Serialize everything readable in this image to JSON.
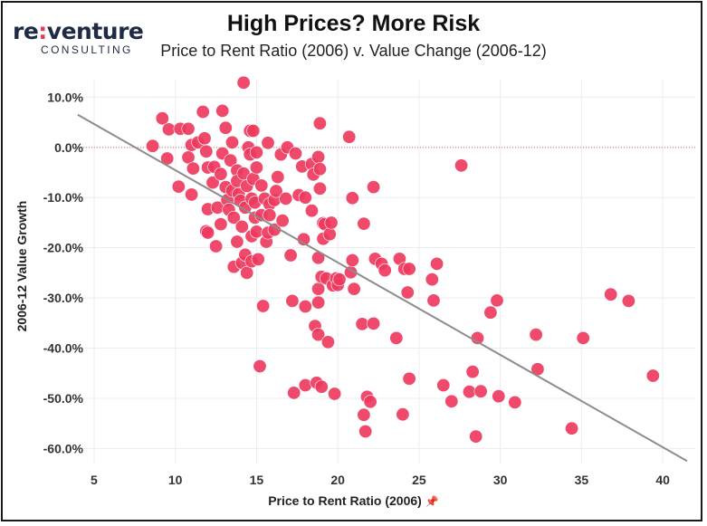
{
  "logo": {
    "main_left": "re",
    "main_colon": ":",
    "main_right": "venture",
    "sub": "CONSULTING"
  },
  "colors": {
    "point": "#ee3a5e",
    "trend": "#8c8c8c",
    "zero_line": "#d46a6a",
    "grid": "#ececec",
    "logo_accent": "#e8395a",
    "logo_text": "#1f2a44"
  },
  "chart_data": {
    "type": "scatter",
    "title": "High Prices? More Risk",
    "subtitle": "Price to Rent Ratio (2006) v. Value Change (2006-12)",
    "xlabel": "Price to Rent Ratio (2006)",
    "ylabel": "2006-12 Value Growth",
    "xlim": [
      4.0,
      42.0
    ],
    "ylim": [
      -63.0,
      13.5
    ],
    "xticks": [
      5,
      10,
      15,
      20,
      25,
      30,
      35,
      40
    ],
    "xtick_labels": [
      "5",
      "10",
      "15",
      "20",
      "25",
      "30",
      "35",
      "40"
    ],
    "yticks": [
      10,
      0,
      -10,
      -20,
      -30,
      -40,
      -50,
      -60
    ],
    "ytick_labels": [
      "10.0%",
      "0.0%",
      "-10.0%",
      "-20.0%",
      "-30.0%",
      "-40.0%",
      "-50.0%",
      "-60.0%"
    ],
    "grid": true,
    "zero_line": true,
    "trendline": {
      "x": [
        4.0,
        41.5
      ],
      "y": [
        6.5,
        -62.5
      ]
    },
    "points": [
      [
        8.6,
        0.3
      ],
      [
        9.2,
        5.8
      ],
      [
        9.6,
        3.6
      ],
      [
        9.5,
        -2.2
      ],
      [
        10.3,
        3.7
      ],
      [
        10.2,
        -7.8
      ],
      [
        10.8,
        3.7
      ],
      [
        10.8,
        -2.0
      ],
      [
        11.0,
        0.5
      ],
      [
        11.1,
        -4.2
      ],
      [
        11.0,
        -9.4
      ],
      [
        11.4,
        1.0
      ],
      [
        11.7,
        7.1
      ],
      [
        11.8,
        1.8
      ],
      [
        11.9,
        -0.8
      ],
      [
        12.0,
        -4.0
      ],
      [
        12.0,
        -12.3
      ],
      [
        11.9,
        -16.7
      ],
      [
        12.0,
        -17.0
      ],
      [
        12.4,
        -3.9
      ],
      [
        12.3,
        -7.0
      ],
      [
        12.6,
        -12.0
      ],
      [
        12.5,
        -19.7
      ],
      [
        12.9,
        7.3
      ],
      [
        12.9,
        -1.2
      ],
      [
        12.8,
        -5.3
      ],
      [
        12.8,
        -15.3
      ],
      [
        13.1,
        3.9
      ],
      [
        13.1,
        -7.9
      ],
      [
        13.2,
        -10.5
      ],
      [
        13.3,
        -12.4
      ],
      [
        13.5,
        1.0
      ],
      [
        13.4,
        -2.6
      ],
      [
        13.5,
        -8.6
      ],
      [
        13.6,
        -14.0
      ],
      [
        13.6,
        -23.8
      ],
      [
        13.8,
        -4.6
      ],
      [
        13.8,
        -6.7
      ],
      [
        13.9,
        -9.3
      ],
      [
        13.8,
        -18.8
      ],
      [
        14.0,
        -10.6
      ],
      [
        14.1,
        -15.8
      ],
      [
        14.1,
        -23.0
      ],
      [
        14.2,
        12.9
      ],
      [
        14.2,
        -5.2
      ],
      [
        14.3,
        -12.0
      ],
      [
        14.3,
        -21.4
      ],
      [
        14.4,
        -25.0
      ],
      [
        14.5,
        0.0
      ],
      [
        14.4,
        -7.7
      ],
      [
        14.6,
        3.3
      ],
      [
        14.6,
        -1.4
      ],
      [
        14.7,
        -10.2
      ],
      [
        14.7,
        -17.7
      ],
      [
        14.7,
        -22.7
      ],
      [
        14.8,
        3.3
      ],
      [
        14.8,
        -6.3
      ],
      [
        14.9,
        -11.0
      ],
      [
        14.9,
        -14.0
      ],
      [
        15.0,
        -1.0
      ],
      [
        15.0,
        -4.0
      ],
      [
        15.0,
        -16.8
      ],
      [
        15.1,
        -22.3
      ],
      [
        15.2,
        -43.6
      ],
      [
        15.3,
        -7.6
      ],
      [
        15.3,
        -13.5
      ],
      [
        15.4,
        -31.6
      ],
      [
        15.5,
        -10.2
      ],
      [
        15.6,
        -18.8
      ],
      [
        15.7,
        0.9
      ],
      [
        15.7,
        -17.0
      ],
      [
        15.8,
        -11.3
      ],
      [
        15.8,
        -13.5
      ],
      [
        16.1,
        -10.5
      ],
      [
        16.1,
        -16.4
      ],
      [
        16.2,
        -8.7
      ],
      [
        16.3,
        -5.9
      ],
      [
        16.5,
        -1.4
      ],
      [
        16.6,
        -14.6
      ],
      [
        16.8,
        -10.2
      ],
      [
        16.9,
        0.0
      ],
      [
        17.1,
        -21.5
      ],
      [
        17.2,
        -30.6
      ],
      [
        17.3,
        -48.9
      ],
      [
        17.4,
        -1.2
      ],
      [
        17.6,
        -9.5
      ],
      [
        17.8,
        -3.8
      ],
      [
        18.0,
        -10.0
      ],
      [
        17.9,
        -18.3
      ],
      [
        18.0,
        -31.7
      ],
      [
        18.0,
        -47.4
      ],
      [
        18.4,
        -3.3
      ],
      [
        18.4,
        -12.6
      ],
      [
        18.5,
        -5.4
      ],
      [
        18.6,
        -35.6
      ],
      [
        18.7,
        -46.9
      ],
      [
        18.8,
        -1.9
      ],
      [
        18.9,
        -4.3
      ],
      [
        18.9,
        -8.2
      ],
      [
        18.8,
        -22.0
      ],
      [
        18.8,
        -28.2
      ],
      [
        18.8,
        -30.9
      ],
      [
        18.8,
        -37.3
      ],
      [
        18.9,
        4.8
      ],
      [
        19.0,
        -25.8
      ],
      [
        19.0,
        -47.7
      ],
      [
        19.1,
        -18.2
      ],
      [
        19.1,
        -15.1
      ],
      [
        19.2,
        -15.3
      ],
      [
        19.3,
        -26.1
      ],
      [
        19.4,
        -38.8
      ],
      [
        19.5,
        -17.3
      ],
      [
        19.6,
        -15.0
      ],
      [
        19.7,
        -27.5
      ],
      [
        19.8,
        -49.1
      ],
      [
        19.9,
        -26.1
      ],
      [
        20.0,
        -27.4
      ],
      [
        20.1,
        -26.3
      ],
      [
        20.7,
        2.1
      ],
      [
        20.8,
        -24.9
      ],
      [
        20.9,
        -10.1
      ],
      [
        20.9,
        -22.5
      ],
      [
        21.0,
        -28.2
      ],
      [
        21.5,
        -35.2
      ],
      [
        21.6,
        -15.2
      ],
      [
        21.6,
        -53.3
      ],
      [
        21.7,
        -56.6
      ],
      [
        21.8,
        -49.7
      ],
      [
        22.0,
        -50.7
      ],
      [
        22.2,
        -7.9
      ],
      [
        22.2,
        -35.1
      ],
      [
        22.3,
        -22.2
      ],
      [
        22.7,
        -23.2
      ],
      [
        22.9,
        -24.5
      ],
      [
        23.6,
        -38.0
      ],
      [
        23.8,
        -22.2
      ],
      [
        24.0,
        -53.2
      ],
      [
        24.1,
        -24.2
      ],
      [
        24.3,
        -28.9
      ],
      [
        24.4,
        -24.2
      ],
      [
        24.4,
        -46.1
      ],
      [
        25.8,
        -26.3
      ],
      [
        25.9,
        -30.5
      ],
      [
        26.1,
        -23.2
      ],
      [
        26.5,
        -47.4
      ],
      [
        27.0,
        -50.6
      ],
      [
        27.6,
        -3.6
      ],
      [
        28.1,
        -48.7
      ],
      [
        28.3,
        -44.7
      ],
      [
        28.5,
        -57.6
      ],
      [
        28.6,
        -38.0
      ],
      [
        28.8,
        -48.6
      ],
      [
        29.4,
        -32.9
      ],
      [
        29.8,
        -30.5
      ],
      [
        29.9,
        -49.6
      ],
      [
        30.9,
        -50.8
      ],
      [
        32.2,
        -37.3
      ],
      [
        32.3,
        -44.2
      ],
      [
        34.4,
        -56.0
      ],
      [
        35.1,
        -38.0
      ],
      [
        36.8,
        -29.3
      ],
      [
        37.9,
        -30.6
      ],
      [
        39.4,
        -45.5
      ]
    ]
  }
}
